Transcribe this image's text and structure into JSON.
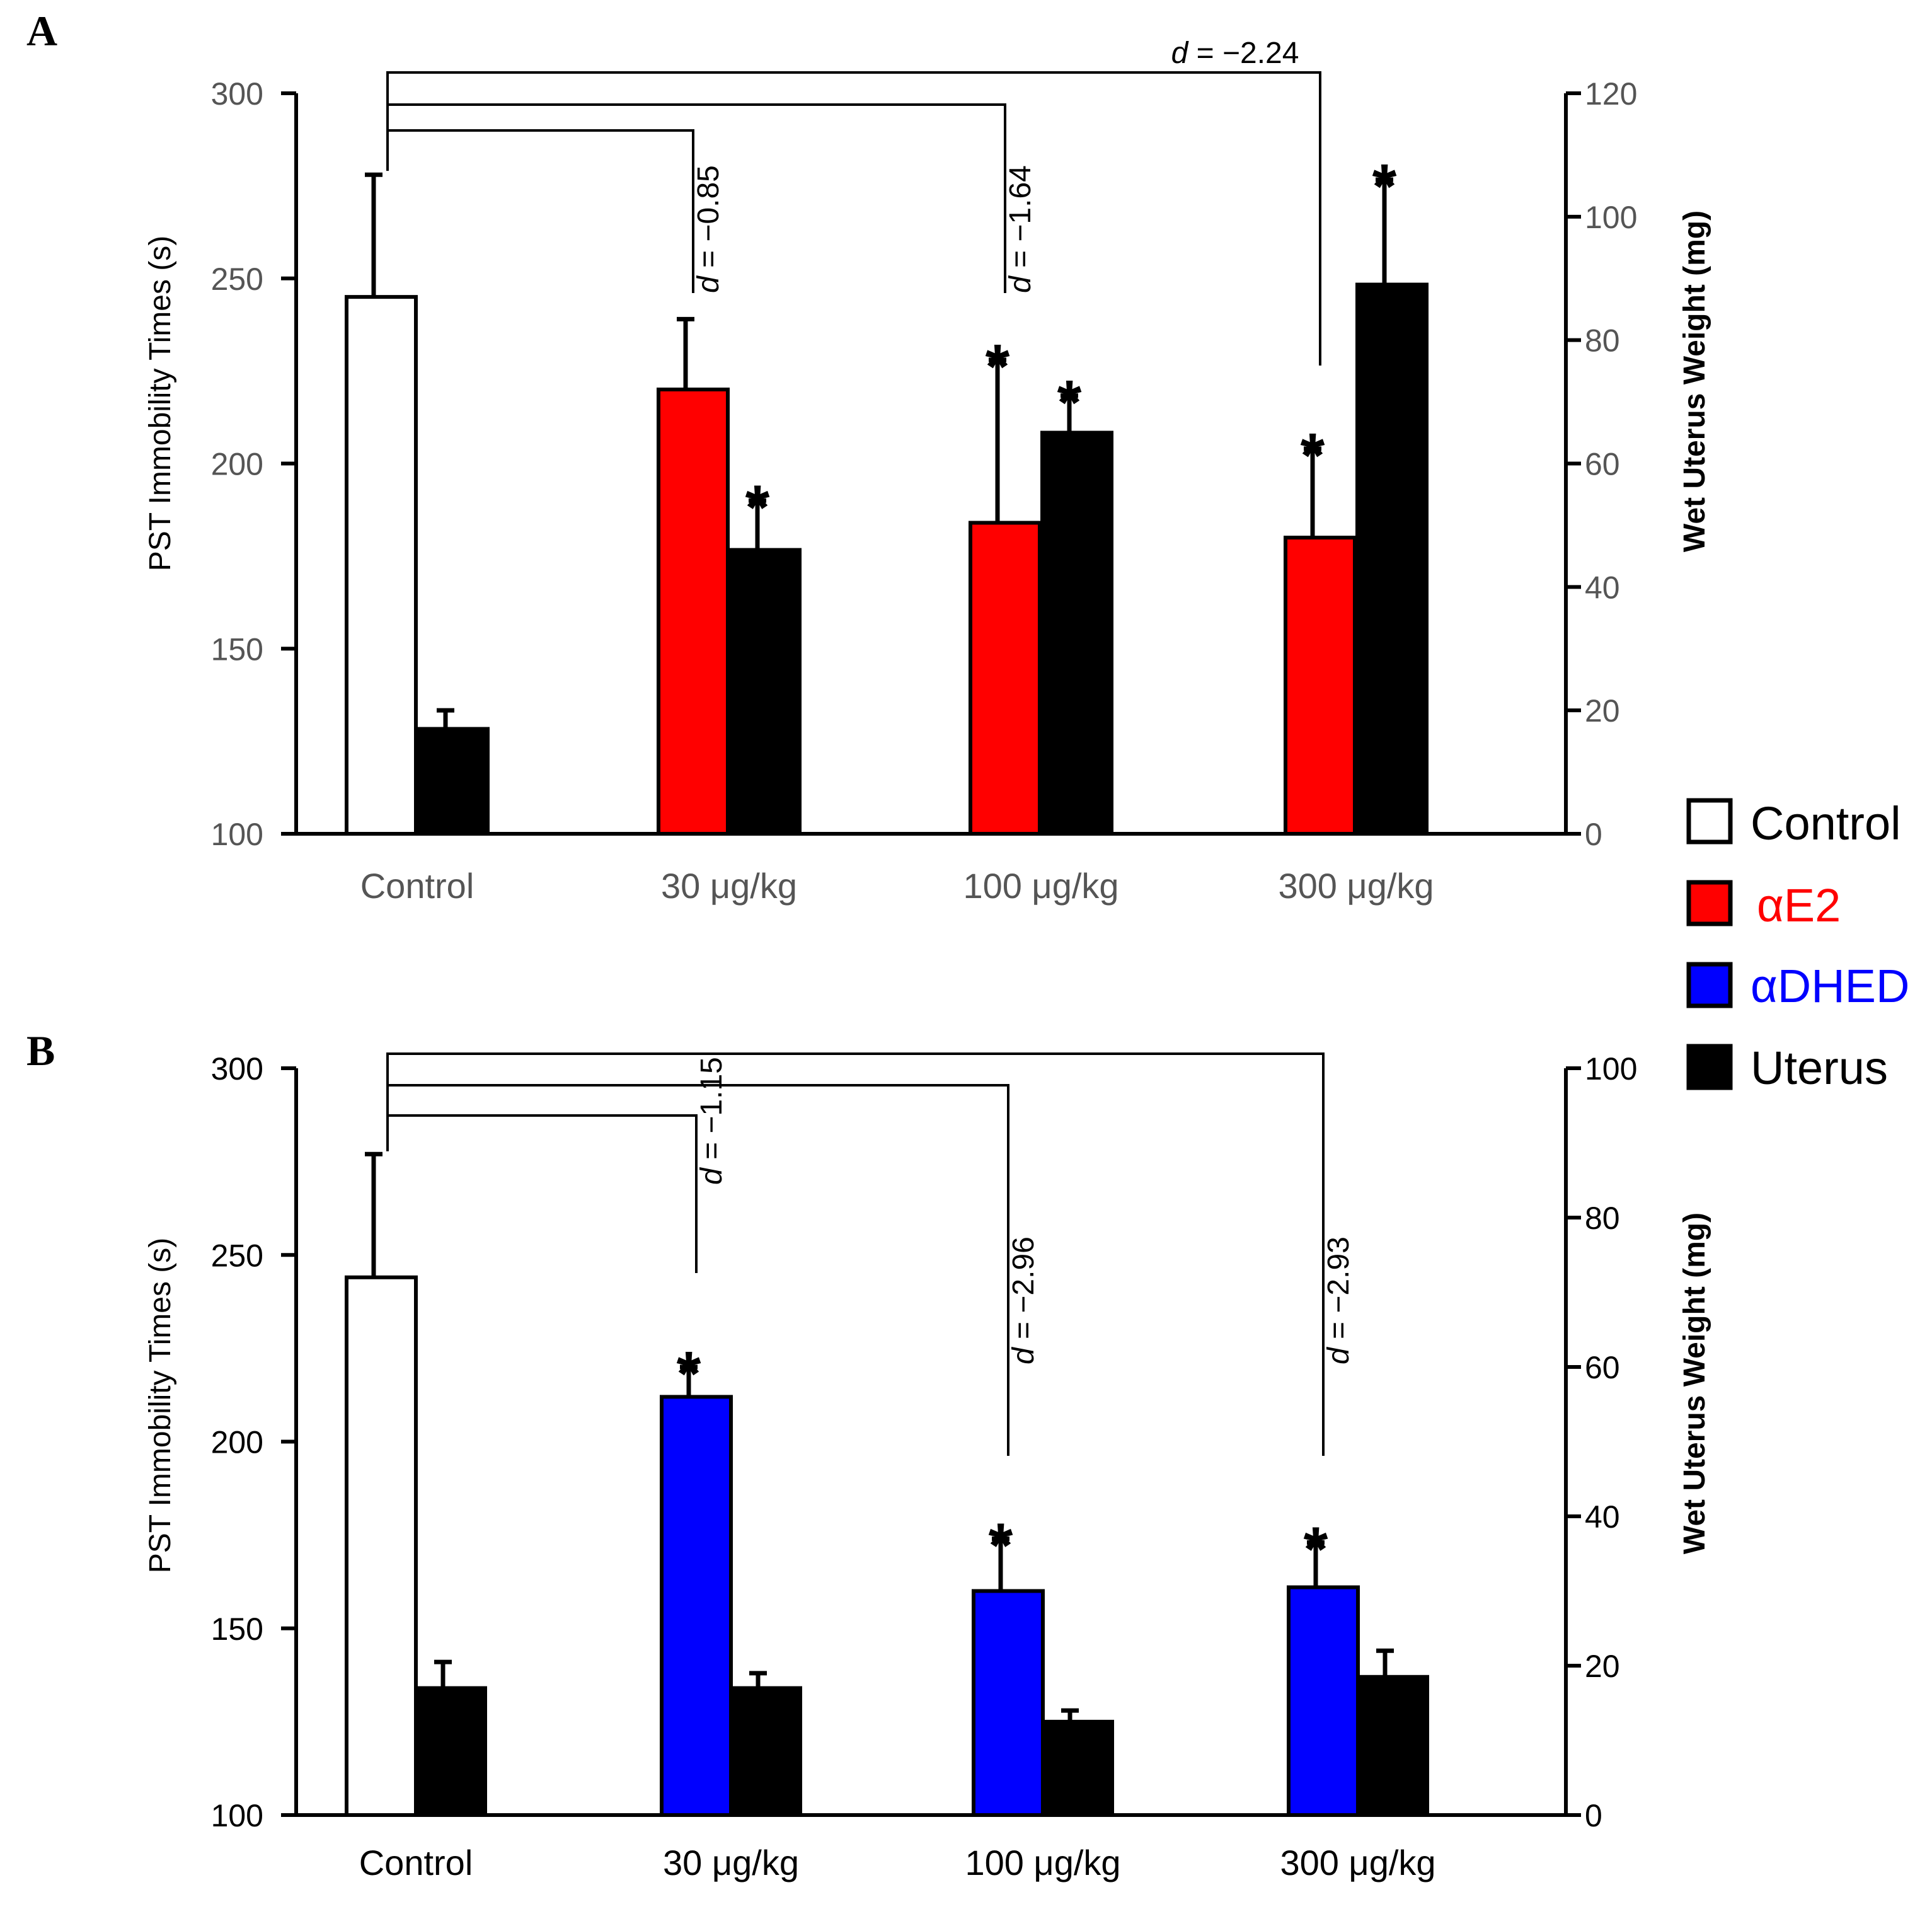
{
  "figure": {
    "legend": [
      {
        "label": "Control",
        "fill": "#ffffff",
        "text_color": "#000000"
      },
      {
        "label": "αE2",
        "fill": "#ff0000",
        "text_color": "#ff0000"
      },
      {
        "label": "αDHED",
        "fill": "#0000ff",
        "text_color": "#0000ff"
      },
      {
        "label": "Uterus",
        "fill": "#000000",
        "text_color": "#000000"
      }
    ]
  },
  "chart_data": [
    {
      "panel": "A",
      "type": "bar",
      "categories": [
        "Control",
        "30 μg/kg",
        "100  μg/kg",
        "300  μg/kg"
      ],
      "category_color": "#555555",
      "left_axis": {
        "label": "PST Immobility Times (s)",
        "ylim": [
          100,
          300
        ],
        "ticks": [
          100,
          150,
          200,
          250,
          300
        ],
        "tick_color": "#555555"
      },
      "right_axis": {
        "label": "Wet Uterus Weight (mg)",
        "ylim": [
          0,
          120
        ],
        "ticks": [
          0,
          20,
          40,
          60,
          80,
          100,
          120
        ],
        "tick_color": "#555555"
      },
      "series": [
        {
          "name": "Control",
          "axis": "left",
          "fill": "#ffffff",
          "values": [
            245,
            null,
            null,
            null
          ],
          "errors": [
            33,
            null,
            null,
            null
          ],
          "stars": [
            false,
            false,
            false,
            false
          ]
        },
        {
          "name": "αE2",
          "axis": "left",
          "fill": "#ff0000",
          "values": [
            null,
            220,
            184,
            180
          ],
          "errors": [
            null,
            19,
            44,
            24
          ],
          "stars": [
            false,
            false,
            true,
            true
          ]
        },
        {
          "name": "Uterus",
          "axis": "right",
          "fill": "#000000",
          "values": [
            17,
            46,
            65,
            89
          ],
          "errors": [
            3,
            8,
            6,
            17
          ],
          "stars": [
            false,
            true,
            true,
            true
          ]
        }
      ],
      "comparisons": [
        {
          "to": 1,
          "label": "d = −0.85",
          "orientation": "vertical"
        },
        {
          "to": 2,
          "label": "d = −1.64",
          "orientation": "vertical"
        },
        {
          "to": 3,
          "label": "d = −2.24",
          "orientation": "horizontal"
        }
      ]
    },
    {
      "panel": "B",
      "type": "bar",
      "categories": [
        "Control",
        "30 μg/kg",
        "100 μg/kg",
        "300 μg/kg"
      ],
      "category_color": "#000000",
      "left_axis": {
        "label": "PST Immobility Times (s)",
        "ylim": [
          100,
          300
        ],
        "ticks": [
          100,
          150,
          200,
          250,
          300
        ],
        "tick_color": "#000000"
      },
      "right_axis": {
        "label": "Wet Uterus Weight (mg)",
        "ylim": [
          0,
          100
        ],
        "ticks": [
          0,
          20,
          40,
          60,
          80,
          100
        ],
        "tick_color": "#000000"
      },
      "series": [
        {
          "name": "Control",
          "axis": "left",
          "fill": "#ffffff",
          "values": [
            244,
            null,
            null,
            null
          ],
          "errors": [
            33,
            null,
            null,
            null
          ],
          "stars": [
            false,
            false,
            false,
            false
          ]
        },
        {
          "name": "αDHED",
          "axis": "left",
          "fill": "#0000ff",
          "values": [
            null,
            212,
            160,
            161
          ],
          "errors": [
            null,
            8,
            14,
            12
          ],
          "stars": [
            false,
            true,
            true,
            true
          ]
        },
        {
          "name": "Uterus",
          "axis": "right",
          "fill": "#000000",
          "values": [
            17,
            17,
            12.5,
            18.5
          ],
          "errors": [
            3.5,
            2,
            1.5,
            3.5
          ],
          "stars": [
            false,
            false,
            false,
            false
          ]
        }
      ],
      "comparisons": [
        {
          "to": 1,
          "label": "d = −1.15",
          "orientation": "vertical"
        },
        {
          "to": 2,
          "label": "d = −2.96",
          "orientation": "vertical"
        },
        {
          "to": 3,
          "label": "d = −2.93",
          "orientation": "vertical"
        }
      ]
    }
  ]
}
